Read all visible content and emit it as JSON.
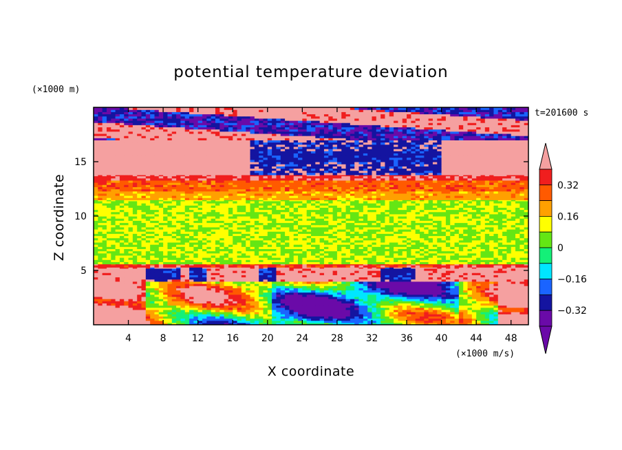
{
  "chart_data": {
    "type": "heatmap",
    "title": "potential temperature deviation",
    "xlabel": "X coordinate",
    "ylabel": "Z coordinate",
    "x_unit": "(×1000 m/s)",
    "y_unit": "(×1000 m)",
    "time_label": "t=201600 s",
    "xlim": [
      0,
      50
    ],
    "ylim": [
      0,
      20
    ],
    "x_ticks": [
      4,
      8,
      12,
      16,
      20,
      24,
      28,
      32,
      36,
      40,
      44,
      48
    ],
    "y_ticks": [
      5,
      10,
      15
    ],
    "colorbar": {
      "levels": [
        -0.4,
        -0.32,
        -0.24,
        -0.16,
        -0.08,
        0,
        0.08,
        0.16,
        0.24,
        0.32,
        0.4
      ],
      "labels": [
        "0.32",
        "0.16",
        "0",
        "−0.16",
        "−0.32"
      ],
      "label_values": [
        0.32,
        0.16,
        0,
        -0.16,
        -0.32
      ],
      "colors_low_to_high": [
        "#6a0aa8",
        "#1414a0",
        "#1a64ff",
        "#00e6ff",
        "#14f078",
        "#64e614",
        "#ffff00",
        "#ffa000",
        "#ff5a00",
        "#f01e1e",
        "#f5a0a0"
      ],
      "extend": "both"
    },
    "layers": [
      {
        "z_range": [
          0,
          4
        ],
        "description_value": "mixed: warm (red/pink) on left edge and near x=47, cold (blue/purple) patches between x=20 and x=42",
        "min": -0.4,
        "max": 0.4
      },
      {
        "z_range": [
          4,
          5.3
        ],
        "dominant_value": 0.36,
        "cold_patches_x": [
          [
            6,
            10
          ],
          [
            11,
            13
          ],
          [
            19,
            21
          ],
          [
            33,
            37
          ]
        ]
      },
      {
        "z_range": [
          5.3,
          5.6
        ],
        "dominant_value": 0.28
      },
      {
        "z_range": [
          5.6,
          11.5
        ],
        "dominant_value": 0.0
      },
      {
        "z_range": [
          11.5,
          12.3
        ],
        "dominant_value": 0.12
      },
      {
        "z_range": [
          12.3,
          13.3
        ],
        "dominant_value": 0.2
      },
      {
        "z_range": [
          13.3,
          13.8
        ],
        "dominant_value": 0.3
      },
      {
        "z_range": [
          13.8,
          17
        ],
        "dominant_value": 0.4,
        "cold_patches_x": [
          [
            18,
            28
          ],
          [
            28,
            36
          ],
          [
            36,
            40
          ]
        ]
      },
      {
        "z_range": [
          17,
          20
        ],
        "description_value": "alternating warm (pink) and cold (purple) bands",
        "min": -0.4,
        "max": 0.4
      }
    ]
  }
}
